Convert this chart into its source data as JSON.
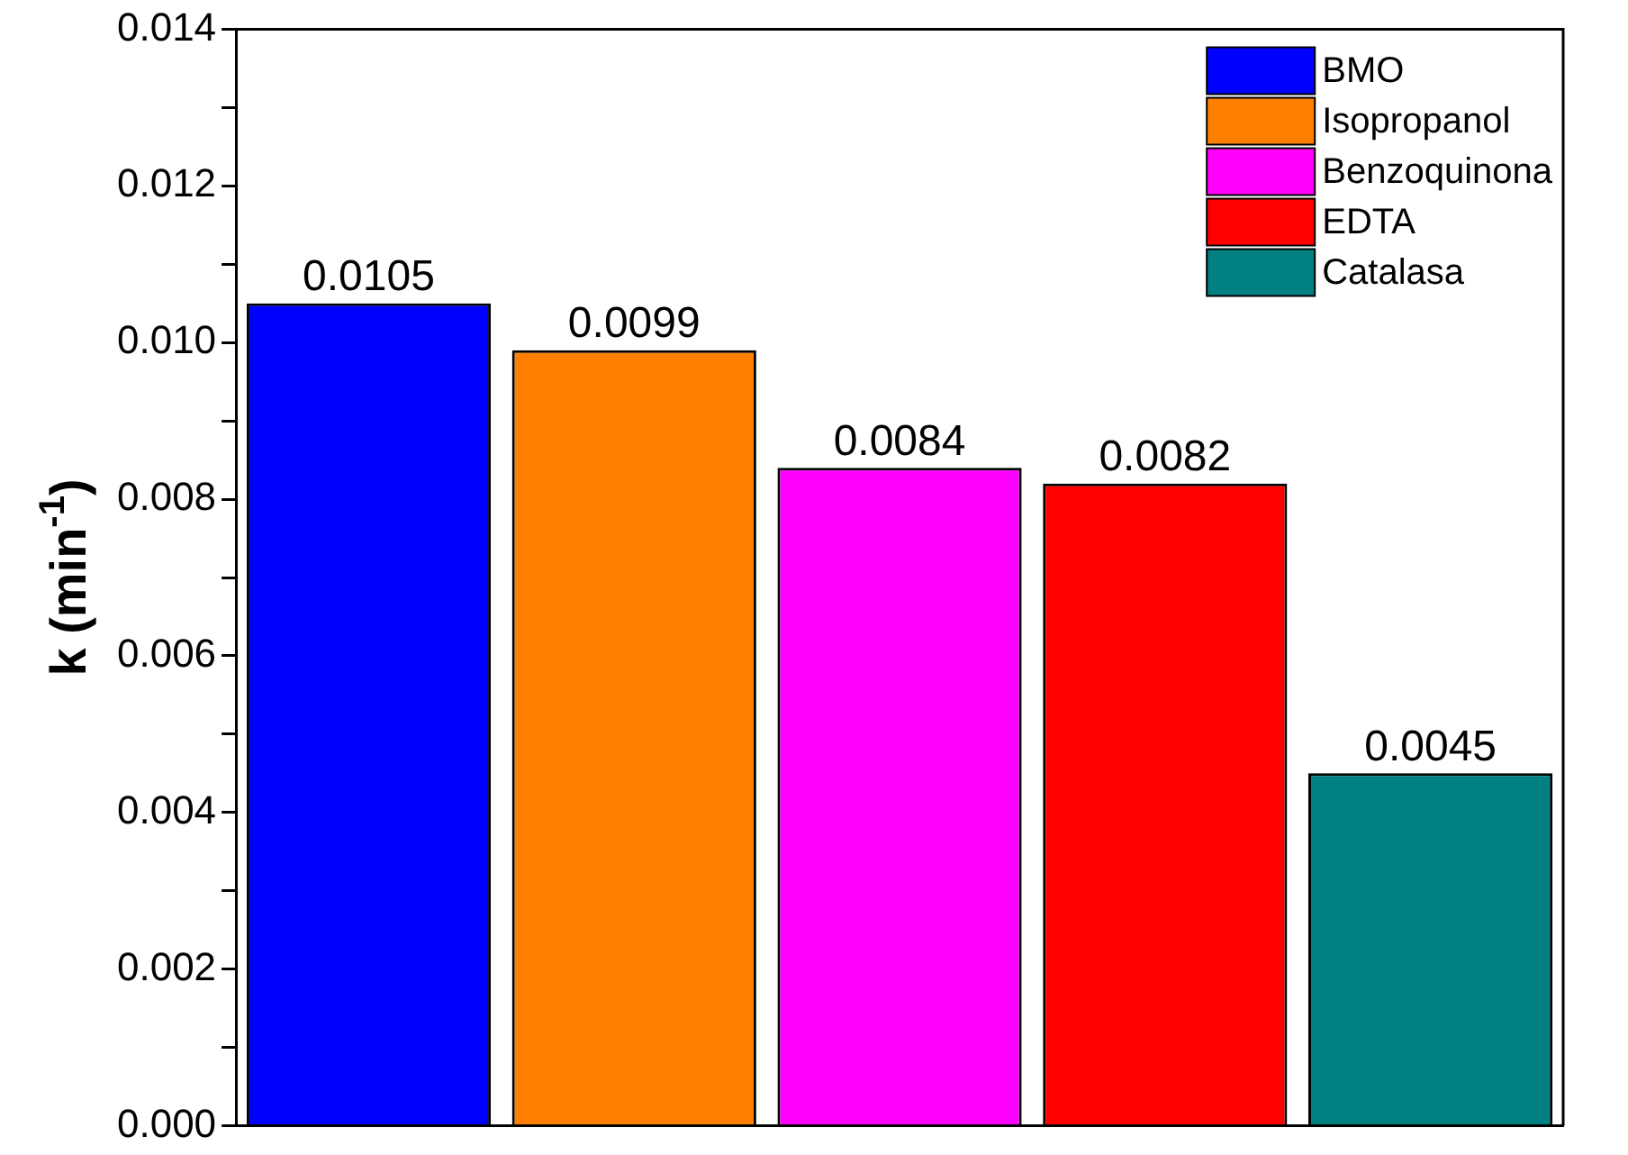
{
  "chart_data": {
    "type": "bar",
    "ylabel": "k (min$^{-1}$)",
    "categories": [
      null,
      null,
      null,
      null,
      null
    ],
    "series": [
      {
        "name": "BMO",
        "color": "#0000ff",
        "values": [
          0.0105,
          null,
          null,
          null,
          null
        ]
      },
      {
        "name": "Isopropanol",
        "color": "#ff8000",
        "values": [
          null,
          0.0099,
          null,
          null,
          null
        ]
      },
      {
        "name": "Benzoquinona",
        "color": "#ff00ff",
        "values": [
          null,
          null,
          0.0084,
          null,
          null
        ]
      },
      {
        "name": "EDTA",
        "color": "#ff0000",
        "values": [
          null,
          null,
          null,
          0.0082,
          null
        ]
      },
      {
        "name": "Catalasa",
        "color": "#008080",
        "values": [
          null,
          null,
          null,
          null,
          0.0045
        ]
      }
    ],
    "ylim": [
      0,
      0.014
    ],
    "yticks": [
      "0.000",
      {
        "value": 0.001,
        "label": null
      },
      {
        "value": 0.002,
        "label": "0.002"
      },
      {
        "value": 0.003,
        "label": null
      },
      {
        "value": 0.004,
        "label": "0.004"
      },
      {
        "value": 0.005,
        "label": null
      },
      {
        "value": 0.006,
        "label": "0.006"
      },
      {
        "value": 0.007,
        "label": null
      },
      {
        "value": 0.008,
        "label": "0.008"
      },
      {
        "value": 0.009,
        "label": null
      },
      {
        "value": 0.01,
        "label": "0.010"
      },
      {
        "value": 0.011,
        "label": null
      },
      {
        "value": 0.012,
        "label": "0.012"
      },
      {
        "value": 0.013,
        "label": null
      },
      {
        "value": 0.014,
        "label": "0.014"
      }
    ],
    "data_labels": true,
    "legend": "top right",
    "grid": false,
    "tick_labels": "y"
  }
}
